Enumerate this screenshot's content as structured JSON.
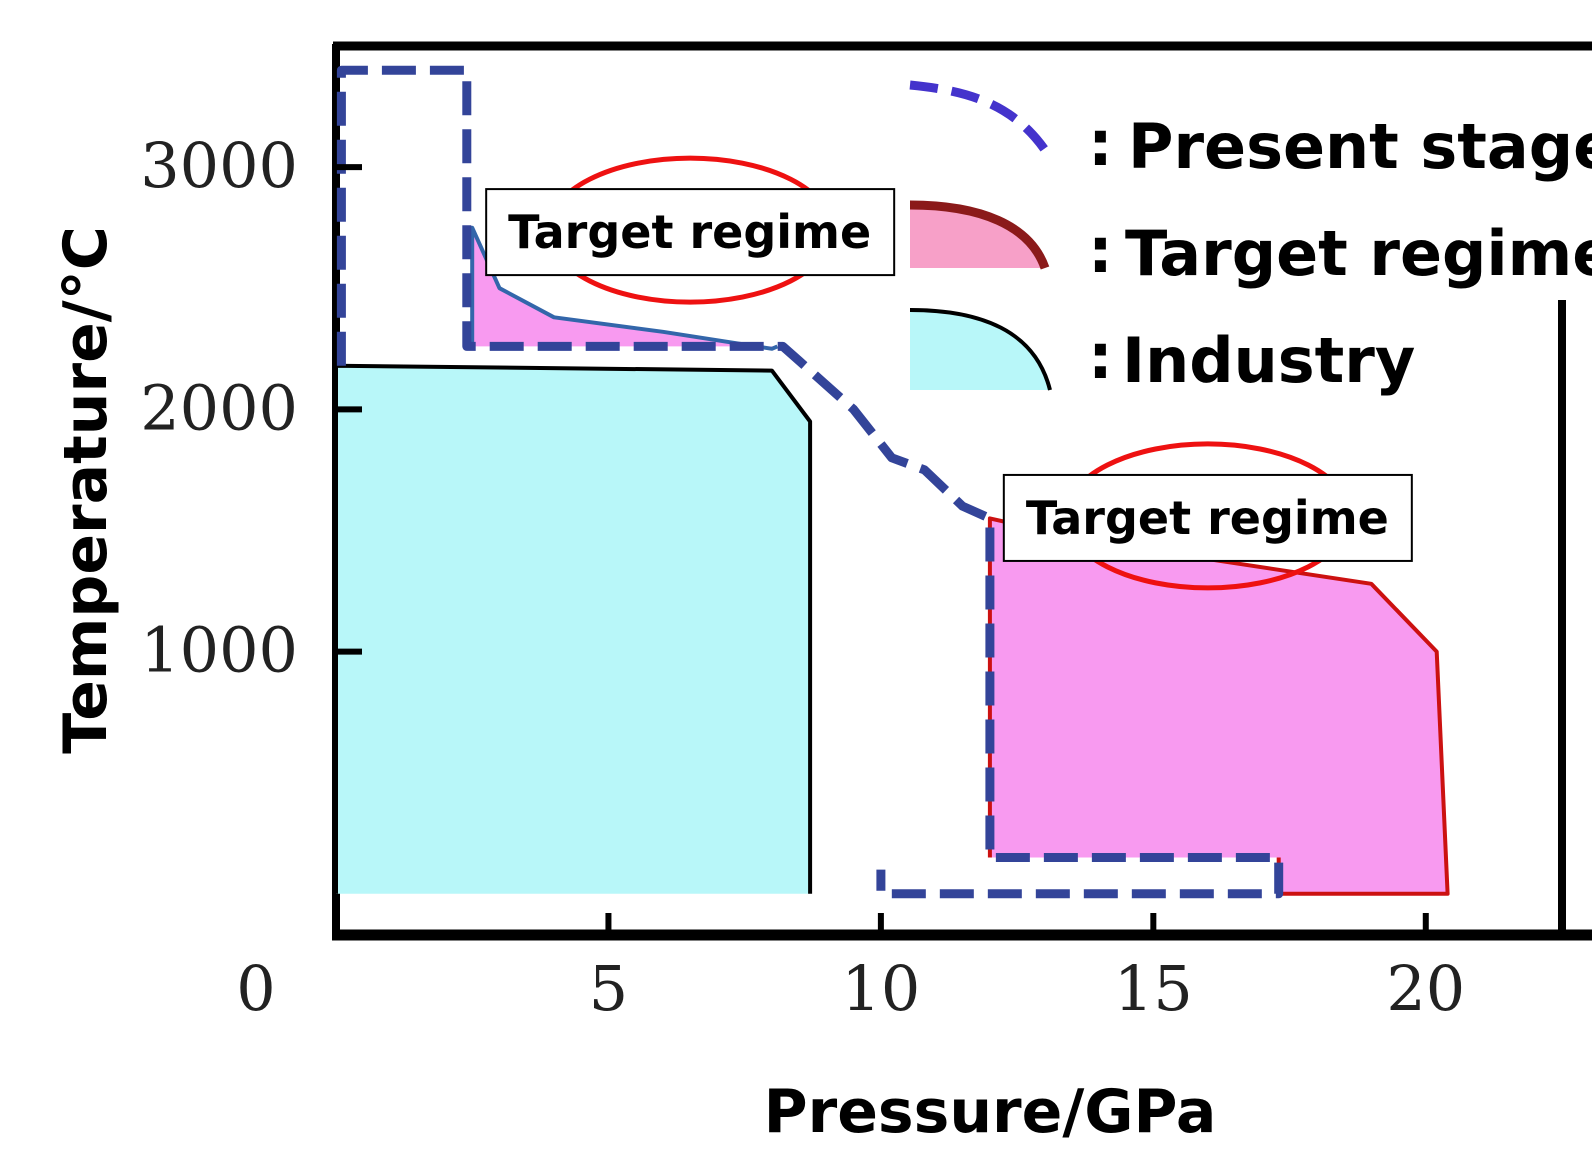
{
  "chart_data": {
    "type": "area",
    "xlabel": "Pressure/GPa",
    "ylabel": "Temperature/°C",
    "xlim": [
      0,
      22.5
    ],
    "ylim": [
      -170,
      3500
    ],
    "xticks": [
      0,
      5,
      10,
      15,
      20
    ],
    "xtick_labels": [
      "0",
      "5",
      "10",
      "15",
      "20"
    ],
    "yticks": [
      1000,
      2000,
      3000
    ],
    "ytick_labels": [
      "1000",
      "2000",
      "3000"
    ],
    "legend": [
      {
        "label": "Present stage",
        "style": "dashed-line",
        "color": "#4433cc"
      },
      {
        "label": "Target regime",
        "style": "filled-area",
        "color": "#f7a0c8",
        "edge": "#8b1a1a"
      },
      {
        "label": "Industry",
        "style": "filled-area",
        "color": "#b8f7f9",
        "edge": "#000000"
      }
    ],
    "regions": [
      {
        "name": "Industry",
        "fill": "#b8f7f9",
        "edge": "#000000",
        "points": [
          [
            0,
            0
          ],
          [
            0,
            2180
          ],
          [
            8.0,
            2160
          ],
          [
            8.7,
            1950
          ],
          [
            8.7,
            0
          ]
        ]
      },
      {
        "name": "Target regime",
        "fill": "#f89af0",
        "edge": "#3366aa",
        "points": [
          [
            2.5,
            2260
          ],
          [
            2.5,
            2750
          ],
          [
            3.0,
            2500
          ],
          [
            4.0,
            2380
          ],
          [
            6.0,
            2320
          ],
          [
            8.0,
            2250
          ],
          [
            8.1,
            2260
          ]
        ]
      },
      {
        "name": "Target regime",
        "fill": "#f89af0",
        "edge": "#cc1111",
        "points": [
          [
            12.0,
            150
          ],
          [
            12.0,
            1550
          ],
          [
            14.0,
            1450
          ],
          [
            19.0,
            1280
          ],
          [
            20.2,
            1000
          ],
          [
            20.4,
            0
          ],
          [
            17.3,
            0
          ],
          [
            17.3,
            150
          ]
        ]
      }
    ],
    "boundary_lines": [
      {
        "name": "Present stage",
        "color": "#334499",
        "dash": true,
        "points": [
          [
            0.1,
            2180
          ],
          [
            0.1,
            3400
          ],
          [
            2.4,
            3400
          ],
          [
            2.4,
            2300
          ],
          [
            2.4,
            2260
          ],
          [
            8.2,
            2260
          ],
          [
            8.5,
            2200
          ],
          [
            9.5,
            2000
          ],
          [
            10.2,
            1800
          ],
          [
            10.8,
            1750
          ],
          [
            11.5,
            1600
          ],
          [
            12.0,
            1550
          ],
          [
            12.0,
            150
          ],
          [
            17.3,
            150
          ],
          [
            17.3,
            0
          ],
          [
            10.0,
            0
          ],
          [
            10.0,
            100
          ]
        ]
      }
    ],
    "annotations": [
      {
        "text": "Target regime",
        "x": 6.5,
        "y": 2740,
        "shape": "box-with-ellipse"
      },
      {
        "text": "Target regime",
        "x": 16.0,
        "y": 1560,
        "shape": "box-with-ellipse"
      }
    ]
  }
}
